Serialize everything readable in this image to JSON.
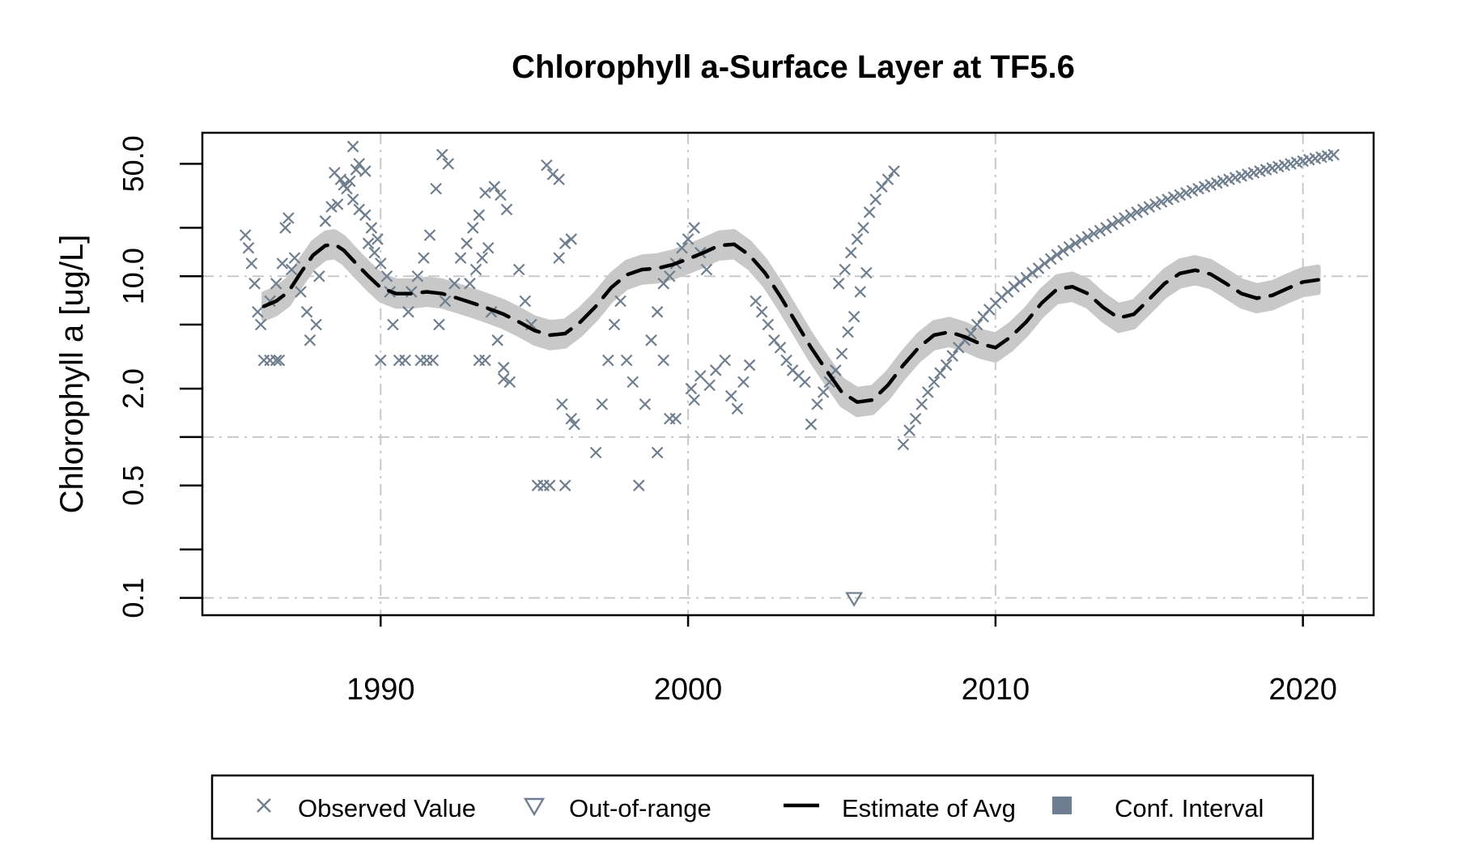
{
  "chart_data": {
    "type": "scatter",
    "title": "Chlorophyll a-Surface Layer at TF5.6",
    "xlabel": "",
    "ylabel": "Chlorophyll a [ug/L]",
    "y_scale": "log",
    "xlim": [
      1984.2,
      2022.3
    ],
    "ylim": [
      0.078,
      78
    ],
    "x_ticks": [
      1990,
      2000,
      2010,
      2020
    ],
    "x_tick_labels": [
      "1990",
      "2000",
      "2010",
      "2020"
    ],
    "y_ticks": [
      0.1,
      0.2,
      0.5,
      1,
      2,
      5,
      10,
      20,
      50
    ],
    "y_tick_labels": [
      "0.1",
      "",
      "0.5",
      "",
      "2.0",
      "",
      "10.0",
      "",
      "50.0"
    ],
    "grid": true,
    "colors": {
      "observed": "#6e7e8e",
      "estimate": "#000000",
      "ci": "#c8c8c8",
      "grid": "#c8c8c8"
    },
    "legend": {
      "position": "bottom",
      "entries": [
        "Observed Value",
        "Out-of-range",
        "Estimate of Avg",
        "Conf. Interval"
      ]
    },
    "series": [
      {
        "name": "Observed Value",
        "points": [
          [
            1985.6,
            18
          ],
          [
            1985.7,
            15
          ],
          [
            1985.8,
            12
          ],
          [
            1985.9,
            9
          ],
          [
            1986.0,
            6
          ],
          [
            1986.1,
            5
          ],
          [
            1986.2,
            3
          ],
          [
            1986.4,
            3
          ],
          [
            1986.6,
            3
          ],
          [
            1986.7,
            3
          ],
          [
            1986.4,
            7
          ],
          [
            1986.6,
            9
          ],
          [
            1986.8,
            12
          ],
          [
            1986.9,
            20
          ],
          [
            1987.0,
            23
          ],
          [
            1987.1,
            11
          ],
          [
            1987.2,
            13
          ],
          [
            1987.4,
            8
          ],
          [
            1987.6,
            6
          ],
          [
            1987.7,
            4
          ],
          [
            1987.9,
            5
          ],
          [
            1988.0,
            10
          ],
          [
            1988.2,
            22
          ],
          [
            1988.4,
            27
          ],
          [
            1988.6,
            28
          ],
          [
            1988.8,
            37
          ],
          [
            1989.0,
            39
          ],
          [
            1989.2,
            46
          ],
          [
            1988.5,
            44
          ],
          [
            1988.7,
            40
          ],
          [
            1988.9,
            35
          ],
          [
            1989.1,
            30
          ],
          [
            1989.3,
            26
          ],
          [
            1989.5,
            24
          ],
          [
            1989.7,
            20
          ],
          [
            1989.9,
            17
          ],
          [
            1989.6,
            16
          ],
          [
            1989.8,
            14
          ],
          [
            1990.0,
            12
          ],
          [
            1990.2,
            10
          ],
          [
            1990.3,
            8
          ],
          [
            1989.1,
            64
          ],
          [
            1989.3,
            50
          ],
          [
            1989.5,
            45
          ],
          [
            1990.4,
            5
          ],
          [
            1990.6,
            3
          ],
          [
            1990.8,
            3
          ],
          [
            1990.0,
            3
          ],
          [
            1990.9,
            6
          ],
          [
            1991.0,
            8
          ],
          [
            1991.2,
            10
          ],
          [
            1991.4,
            13
          ],
          [
            1991.6,
            18
          ],
          [
            1991.8,
            35
          ],
          [
            1992.0,
            57
          ],
          [
            1992.2,
            50
          ],
          [
            1991.3,
            3
          ],
          [
            1991.5,
            3
          ],
          [
            1991.7,
            3
          ],
          [
            1991.9,
            5
          ],
          [
            1992.1,
            7
          ],
          [
            1992.4,
            9
          ],
          [
            1992.6,
            13
          ],
          [
            1992.8,
            16
          ],
          [
            1993.0,
            20
          ],
          [
            1993.2,
            24
          ],
          [
            1993.4,
            33
          ],
          [
            1992.9,
            9
          ],
          [
            1993.1,
            11
          ],
          [
            1993.3,
            13
          ],
          [
            1993.5,
            15
          ],
          [
            1993.6,
            6
          ],
          [
            1993.8,
            4
          ],
          [
            1994.0,
            2.7
          ],
          [
            1994.2,
            2.2
          ],
          [
            1993.7,
            36
          ],
          [
            1993.9,
            32
          ],
          [
            1994.1,
            26
          ],
          [
            1993.2,
            3
          ],
          [
            1993.4,
            3
          ],
          [
            1994.0,
            2.3
          ],
          [
            1994.5,
            11
          ],
          [
            1994.7,
            7
          ],
          [
            1994.9,
            5
          ],
          [
            1995.1,
            0.5
          ],
          [
            1995.3,
            0.5
          ],
          [
            1995.5,
            0.5
          ],
          [
            1996.0,
            0.5
          ],
          [
            1996.2,
            1.3
          ],
          [
            1995.4,
            49
          ],
          [
            1995.6,
            43
          ],
          [
            1995.8,
            40
          ],
          [
            1996.0,
            16
          ],
          [
            1996.2,
            17
          ],
          [
            1995.8,
            13
          ],
          [
            1995.9,
            1.6
          ],
          [
            1996.3,
            1.2
          ],
          [
            1997.0,
            0.8
          ],
          [
            1997.2,
            1.6
          ],
          [
            1997.4,
            3
          ],
          [
            1997.6,
            5
          ],
          [
            1997.8,
            7
          ],
          [
            1998.0,
            3
          ],
          [
            1998.2,
            2.2
          ],
          [
            1998.4,
            0.5
          ],
          [
            1998.6,
            1.6
          ],
          [
            1998.8,
            4
          ],
          [
            1999.0,
            6
          ],
          [
            1999.2,
            9
          ],
          [
            1999.4,
            10
          ],
          [
            1999.6,
            12
          ],
          [
            1999.8,
            15
          ],
          [
            2000.0,
            17
          ],
          [
            2000.2,
            20
          ],
          [
            2000.4,
            14
          ],
          [
            2000.6,
            11
          ],
          [
            1999.2,
            3
          ],
          [
            1999.4,
            1.3
          ],
          [
            1999.6,
            1.3
          ],
          [
            1999.0,
            0.8
          ],
          [
            2000.1,
            2
          ],
          [
            2000.2,
            1.7
          ],
          [
            2000.4,
            2.4
          ],
          [
            2000.7,
            2.1
          ],
          [
            2000.9,
            2.6
          ],
          [
            2001.2,
            3
          ],
          [
            2001.4,
            1.8
          ],
          [
            2001.6,
            1.5
          ],
          [
            2001.8,
            2.2
          ],
          [
            2002.0,
            2.8
          ],
          [
            2002.2,
            7
          ],
          [
            2002.4,
            6
          ],
          [
            2002.6,
            5
          ],
          [
            2002.8,
            4
          ],
          [
            2003.0,
            3.6
          ],
          [
            2003.2,
            3
          ],
          [
            2003.4,
            2.6
          ],
          [
            2003.6,
            2.4
          ],
          [
            2003.8,
            2.2
          ],
          [
            2004.0,
            1.2
          ],
          [
            2004.2,
            1.6
          ],
          [
            2004.4,
            1.9
          ],
          [
            2004.6,
            2.2
          ],
          [
            2004.8,
            2.6
          ],
          [
            2005.0,
            3.3
          ],
          [
            2005.2,
            4.5
          ],
          [
            2005.4,
            5.6
          ],
          [
            2005.6,
            8
          ],
          [
            2005.8,
            10.5
          ],
          [
            2004.9,
            9
          ],
          [
            2005.1,
            11
          ],
          [
            2005.3,
            14
          ],
          [
            2005.5,
            17
          ],
          [
            2005.7,
            20
          ],
          [
            2005.9,
            25
          ],
          [
            2006.1,
            30
          ],
          [
            2006.3,
            36
          ],
          [
            2006.5,
            40
          ],
          [
            2006.7,
            45
          ],
          [
            2007.0,
            0.9
          ],
          [
            2007.2,
            1.1
          ],
          [
            2007.4,
            1.3
          ],
          [
            2007.6,
            1.6
          ],
          [
            2007.8,
            1.9
          ],
          [
            2008.0,
            2.2
          ],
          [
            2008.2,
            2.5
          ],
          [
            2008.4,
            2.8
          ],
          [
            2008.6,
            3.2
          ],
          [
            2008.8,
            3.6
          ],
          [
            2009.0,
            4
          ],
          [
            2009.2,
            4.4
          ],
          [
            2009.4,
            5
          ],
          [
            2009.6,
            5.6
          ],
          [
            2009.8,
            6.2
          ],
          [
            2010.0,
            6.8
          ],
          [
            2010.2,
            7.4
          ],
          [
            2010.4,
            8
          ],
          [
            2010.6,
            8.6
          ],
          [
            2010.8,
            9.2
          ],
          [
            2011.0,
            9.8
          ],
          [
            2011.2,
            10.5
          ],
          [
            2011.4,
            11.2
          ],
          [
            2011.6,
            12
          ],
          [
            2011.8,
            12.8
          ],
          [
            2012.0,
            13.6
          ],
          [
            2012.2,
            14.4
          ],
          [
            2012.4,
            15.2
          ],
          [
            2012.6,
            16
          ],
          [
            2012.8,
            16.8
          ],
          [
            2013.0,
            17.6
          ],
          [
            2013.2,
            18.4
          ],
          [
            2013.4,
            19.2
          ],
          [
            2013.6,
            20
          ],
          [
            2013.8,
            21
          ],
          [
            2014.0,
            22
          ],
          [
            2014.2,
            23
          ],
          [
            2014.4,
            24
          ],
          [
            2014.6,
            25
          ],
          [
            2014.8,
            26
          ],
          [
            2015.0,
            27
          ],
          [
            2015.2,
            28
          ],
          [
            2015.4,
            29
          ],
          [
            2015.6,
            30
          ],
          [
            2015.8,
            31
          ],
          [
            2016.0,
            32
          ],
          [
            2016.2,
            33
          ],
          [
            2016.4,
            34
          ],
          [
            2016.6,
            35
          ],
          [
            2016.8,
            36
          ],
          [
            2017.0,
            37
          ],
          [
            2017.2,
            38
          ],
          [
            2017.4,
            39
          ],
          [
            2017.6,
            40
          ],
          [
            2017.8,
            41
          ],
          [
            2018.0,
            42
          ],
          [
            2018.2,
            43
          ],
          [
            2018.4,
            44
          ],
          [
            2018.6,
            45
          ],
          [
            2018.8,
            46
          ],
          [
            2019.0,
            47
          ],
          [
            2019.2,
            48
          ],
          [
            2019.4,
            49
          ],
          [
            2019.6,
            50
          ],
          [
            2019.8,
            51
          ],
          [
            2020.0,
            52
          ],
          [
            2020.2,
            53
          ],
          [
            2020.4,
            54
          ],
          [
            2020.6,
            55
          ],
          [
            2020.8,
            56
          ],
          [
            2021.0,
            57
          ]
        ]
      },
      {
        "name": "Out-of-range",
        "points": [
          [
            2005.4,
            0.1
          ]
        ]
      },
      {
        "name": "Estimate of Avg",
        "points": [
          [
            1986.2,
            6.5
          ],
          [
            1986.6,
            7.0
          ],
          [
            1987.0,
            8.0
          ],
          [
            1987.4,
            10.5
          ],
          [
            1987.8,
            13.5
          ],
          [
            1988.2,
            15.5
          ],
          [
            1988.5,
            15.8
          ],
          [
            1988.8,
            14.5
          ],
          [
            1989.2,
            12.0
          ],
          [
            1989.6,
            10.0
          ],
          [
            1990.0,
            8.5
          ],
          [
            1990.5,
            7.8
          ],
          [
            1991.0,
            7.8
          ],
          [
            1991.5,
            8.0
          ],
          [
            1992.0,
            7.8
          ],
          [
            1992.5,
            7.3
          ],
          [
            1993.0,
            6.8
          ],
          [
            1993.5,
            6.3
          ],
          [
            1994.0,
            5.8
          ],
          [
            1994.5,
            5.2
          ],
          [
            1995.0,
            4.6
          ],
          [
            1995.5,
            4.3
          ],
          [
            1996.0,
            4.4
          ],
          [
            1996.5,
            5.2
          ],
          [
            1997.0,
            6.5
          ],
          [
            1997.5,
            8.5
          ],
          [
            1998.0,
            10.2
          ],
          [
            1998.5,
            11.0
          ],
          [
            1999.0,
            11.2
          ],
          [
            1999.5,
            11.8
          ],
          [
            2000.0,
            12.8
          ],
          [
            2000.5,
            14.0
          ],
          [
            2001.0,
            15.5
          ],
          [
            2001.5,
            15.8
          ],
          [
            2002.0,
            13.5
          ],
          [
            2002.5,
            10.5
          ],
          [
            2003.0,
            7.5
          ],
          [
            2003.5,
            5.2
          ],
          [
            2004.0,
            3.6
          ],
          [
            2004.5,
            2.6
          ],
          [
            2005.0,
            1.9
          ],
          [
            2005.5,
            1.65
          ],
          [
            2006.0,
            1.7
          ],
          [
            2006.5,
            2.1
          ],
          [
            2007.0,
            2.8
          ],
          [
            2007.5,
            3.6
          ],
          [
            2008.0,
            4.3
          ],
          [
            2008.5,
            4.5
          ],
          [
            2009.0,
            4.2
          ],
          [
            2009.5,
            3.8
          ],
          [
            2010.0,
            3.6
          ],
          [
            2010.5,
            4.2
          ],
          [
            2011.0,
            5.2
          ],
          [
            2011.5,
            6.8
          ],
          [
            2012.0,
            8.3
          ],
          [
            2012.5,
            8.6
          ],
          [
            2013.0,
            7.8
          ],
          [
            2013.5,
            6.4
          ],
          [
            2014.0,
            5.5
          ],
          [
            2014.5,
            5.8
          ],
          [
            2015.0,
            7.2
          ],
          [
            2015.5,
            9.0
          ],
          [
            2016.0,
            10.4
          ],
          [
            2016.5,
            10.9
          ],
          [
            2017.0,
            10.3
          ],
          [
            2017.5,
            9.0
          ],
          [
            2018.0,
            7.8
          ],
          [
            2018.5,
            7.3
          ],
          [
            2019.0,
            7.6
          ],
          [
            2019.5,
            8.4
          ],
          [
            2020.0,
            9.2
          ],
          [
            2020.5,
            9.5
          ]
        ]
      }
    ]
  }
}
